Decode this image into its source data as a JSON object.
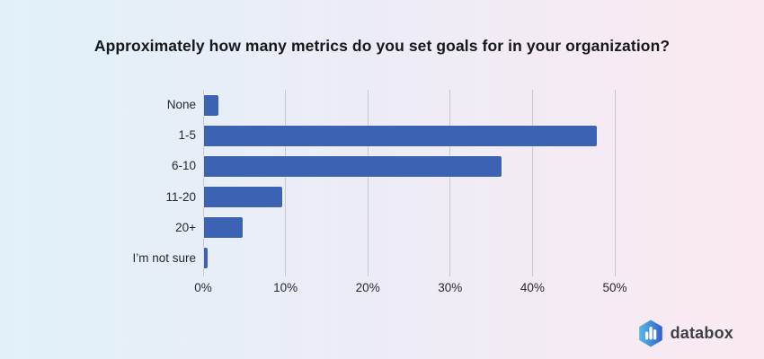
{
  "title": "Approximately how many metrics do you set goals for in your organization?",
  "chart_data": {
    "type": "bar",
    "orientation": "horizontal",
    "title": "Approximately how many metrics do you set goals for in your organization?",
    "categories": [
      "None",
      "1-5",
      "6-10",
      "11-20",
      "20+",
      "I’m not sure"
    ],
    "values": [
      1.8,
      47.8,
      36.2,
      9.5,
      4.7,
      0.5
    ],
    "value_unit": "%",
    "xlabel": "",
    "ylabel": "",
    "xlim": [
      0,
      50
    ],
    "xticks": [
      "0%",
      "10%",
      "20%",
      "30%",
      "40%",
      "50%"
    ],
    "xtick_values": [
      0,
      10,
      20,
      30,
      40,
      50
    ],
    "grid": true,
    "legend": false,
    "bar_color": "#3c63b3",
    "gridline_color": "#c5c8cd"
  },
  "branding": {
    "logo_text": "databox",
    "logo_icon": "databox-hexagon-bar-chart-icon",
    "icon_gradient_start": "#55b9e8",
    "icon_gradient_end": "#3160cd"
  },
  "background": {
    "gradient_left": "#e1f1fa",
    "gradient_right": "#fceaf2"
  }
}
